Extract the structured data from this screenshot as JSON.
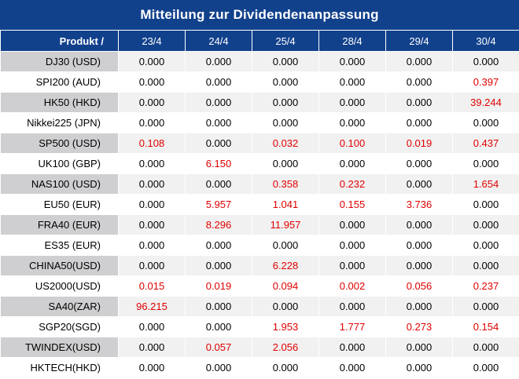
{
  "title": "Mitteilung zur Dividendenanpassung",
  "header": {
    "product_label": "Produkt /",
    "dates": [
      "23/4",
      "24/4",
      "25/4",
      "28/4",
      "29/4",
      "30/4"
    ]
  },
  "colors": {
    "header_bg": "#12418c",
    "highlight_text": "#e00000",
    "shade_label_bg": "#cfcfd1",
    "shade_row_bg": "#f1f1f1"
  },
  "rows": [
    {
      "product": "DJ30 (USD)",
      "values": [
        "0.000",
        "0.000",
        "0.000",
        "0.000",
        "0.000",
        "0.000"
      ]
    },
    {
      "product": "SPI200 (AUD)",
      "values": [
        "0.000",
        "0.000",
        "0.000",
        "0.000",
        "0.000",
        "0.397"
      ]
    },
    {
      "product": "HK50 (HKD)",
      "values": [
        "0.000",
        "0.000",
        "0.000",
        "0.000",
        "0.000",
        "39.244"
      ]
    },
    {
      "product": "Nikkei225 (JPN)",
      "values": [
        "0.000",
        "0.000",
        "0.000",
        "0.000",
        "0.000",
        "0.000"
      ]
    },
    {
      "product": "SP500 (USD)",
      "values": [
        "0.108",
        "0.000",
        "0.032",
        "0.100",
        "0.019",
        "0.437"
      ]
    },
    {
      "product": "UK100 (GBP)",
      "values": [
        "0.000",
        "6.150",
        "0.000",
        "0.000",
        "0.000",
        "0.000"
      ]
    },
    {
      "product": "NAS100 (USD)",
      "values": [
        "0.000",
        "0.000",
        "0.358",
        "0.232",
        "0.000",
        "1.654"
      ]
    },
    {
      "product": "EU50 (EUR)",
      "values": [
        "0.000",
        "5.957",
        "1.041",
        "0.155",
        "3.736",
        "0.000"
      ]
    },
    {
      "product": "FRA40 (EUR)",
      "values": [
        "0.000",
        "8.296",
        "11.957",
        "0.000",
        "0.000",
        "0.000"
      ]
    },
    {
      "product": "ES35 (EUR)",
      "values": [
        "0.000",
        "0.000",
        "0.000",
        "0.000",
        "0.000",
        "0.000"
      ]
    },
    {
      "product": "CHINA50(USD)",
      "values": [
        "0.000",
        "0.000",
        "6.228",
        "0.000",
        "0.000",
        "0.000"
      ]
    },
    {
      "product": "US2000(USD)",
      "values": [
        "0.015",
        "0.019",
        "0.094",
        "0.002",
        "0.056",
        "0.237"
      ]
    },
    {
      "product": "SA40(ZAR)",
      "values": [
        "96.215",
        "0.000",
        "0.000",
        "0.000",
        "0.000",
        "0.000"
      ]
    },
    {
      "product": "SGP20(SGD)",
      "values": [
        "0.000",
        "0.000",
        "1.953",
        "1.777",
        "0.273",
        "0.154"
      ]
    },
    {
      "product": "TWINDEX(USD)",
      "values": [
        "0.000",
        "0.057",
        "2.056",
        "0.000",
        "0.000",
        "0.000"
      ]
    },
    {
      "product": "HKTECH(HKD)",
      "values": [
        "0.000",
        "0.000",
        "0.000",
        "0.000",
        "0.000",
        "0.000"
      ]
    }
  ]
}
